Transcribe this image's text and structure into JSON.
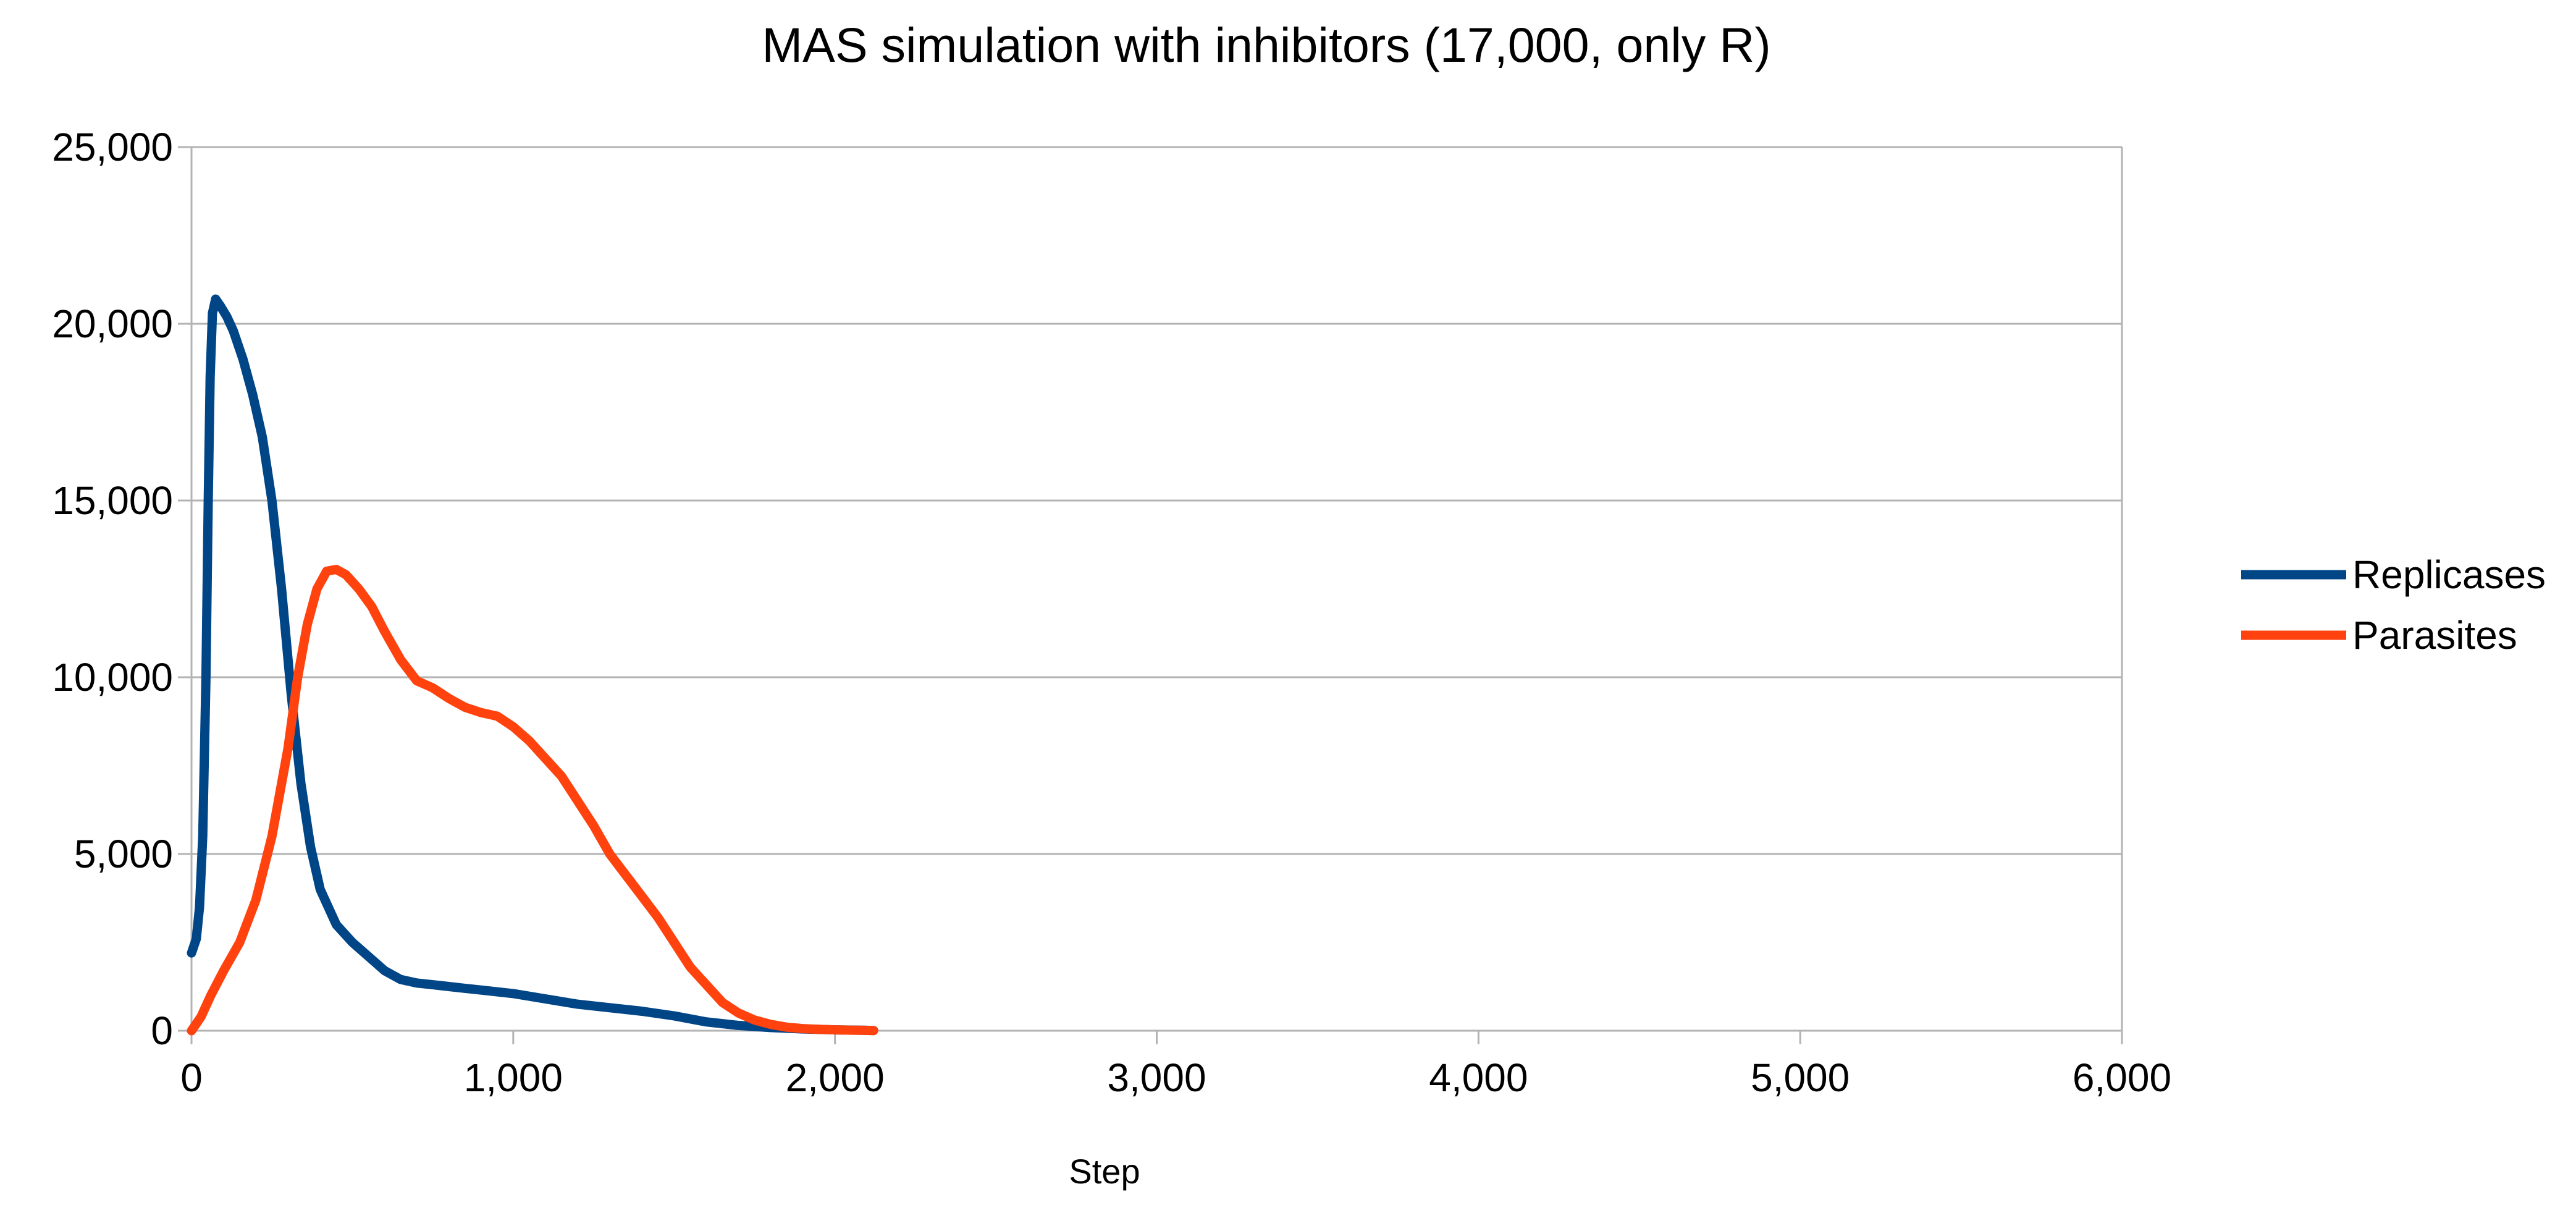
{
  "chart_data": {
    "type": "line",
    "title": "MAS simulation with inhibitors (17,000, only R)",
    "xlabel": "Step",
    "ylabel": "",
    "xlim": [
      0,
      6000
    ],
    "ylim": [
      0,
      25000
    ],
    "x_ticks": [
      0,
      1000,
      2000,
      3000,
      4000,
      5000,
      6000
    ],
    "x_tick_labels": [
      "0",
      "1,000",
      "2,000",
      "3,000",
      "4,000",
      "5,000",
      "6,000"
    ],
    "y_ticks": [
      0,
      5000,
      10000,
      15000,
      20000,
      25000
    ],
    "y_tick_labels": [
      "0",
      "5,000",
      "10,000",
      "15,000",
      "20,000",
      "25,000"
    ],
    "grid": "horizontal",
    "legend_position": "right",
    "series": [
      {
        "name": "Replicases",
        "color": "#004586",
        "points": [
          [
            0,
            2200
          ],
          [
            15,
            2600
          ],
          [
            25,
            3500
          ],
          [
            35,
            5500
          ],
          [
            45,
            10000
          ],
          [
            52,
            15000
          ],
          [
            58,
            18500
          ],
          [
            65,
            20300
          ],
          [
            75,
            20700
          ],
          [
            90,
            20500
          ],
          [
            110,
            20200
          ],
          [
            130,
            19800
          ],
          [
            160,
            19000
          ],
          [
            190,
            18000
          ],
          [
            220,
            16800
          ],
          [
            250,
            15000
          ],
          [
            280,
            12500
          ],
          [
            310,
            9500
          ],
          [
            340,
            7000
          ],
          [
            370,
            5200
          ],
          [
            400,
            4000
          ],
          [
            450,
            3000
          ],
          [
            500,
            2500
          ],
          [
            550,
            2100
          ],
          [
            600,
            1700
          ],
          [
            650,
            1450
          ],
          [
            700,
            1350
          ],
          [
            750,
            1300
          ],
          [
            800,
            1250
          ],
          [
            850,
            1200
          ],
          [
            900,
            1150
          ],
          [
            950,
            1100
          ],
          [
            1000,
            1050
          ],
          [
            1100,
            900
          ],
          [
            1200,
            750
          ],
          [
            1300,
            650
          ],
          [
            1400,
            550
          ],
          [
            1500,
            420
          ],
          [
            1600,
            250
          ],
          [
            1700,
            150
          ],
          [
            1800,
            90
          ],
          [
            1900,
            50
          ],
          [
            2000,
            25
          ],
          [
            2100,
            10
          ],
          [
            2120,
            5
          ]
        ]
      },
      {
        "name": "Parasites",
        "color": "#ff420e",
        "points": [
          [
            0,
            0
          ],
          [
            30,
            400
          ],
          [
            60,
            1000
          ],
          [
            100,
            1700
          ],
          [
            150,
            2500
          ],
          [
            200,
            3700
          ],
          [
            250,
            5500
          ],
          [
            300,
            8000
          ],
          [
            330,
            10000
          ],
          [
            360,
            11500
          ],
          [
            390,
            12500
          ],
          [
            420,
            13000
          ],
          [
            450,
            13050
          ],
          [
            480,
            12900
          ],
          [
            520,
            12500
          ],
          [
            560,
            12000
          ],
          [
            600,
            11300
          ],
          [
            650,
            10500
          ],
          [
            700,
            9900
          ],
          [
            750,
            9700
          ],
          [
            800,
            9400
          ],
          [
            850,
            9150
          ],
          [
            900,
            9000
          ],
          [
            950,
            8900
          ],
          [
            1000,
            8600
          ],
          [
            1050,
            8200
          ],
          [
            1100,
            7700
          ],
          [
            1150,
            7200
          ],
          [
            1200,
            6500
          ],
          [
            1250,
            5800
          ],
          [
            1300,
            5000
          ],
          [
            1350,
            4400
          ],
          [
            1400,
            3800
          ],
          [
            1450,
            3200
          ],
          [
            1500,
            2500
          ],
          [
            1550,
            1800
          ],
          [
            1600,
            1300
          ],
          [
            1650,
            800
          ],
          [
            1700,
            500
          ],
          [
            1750,
            300
          ],
          [
            1800,
            180
          ],
          [
            1850,
            100
          ],
          [
            1900,
            60
          ],
          [
            1950,
            40
          ],
          [
            2000,
            25
          ],
          [
            2050,
            15
          ],
          [
            2100,
            8
          ],
          [
            2120,
            5
          ]
        ]
      }
    ]
  }
}
